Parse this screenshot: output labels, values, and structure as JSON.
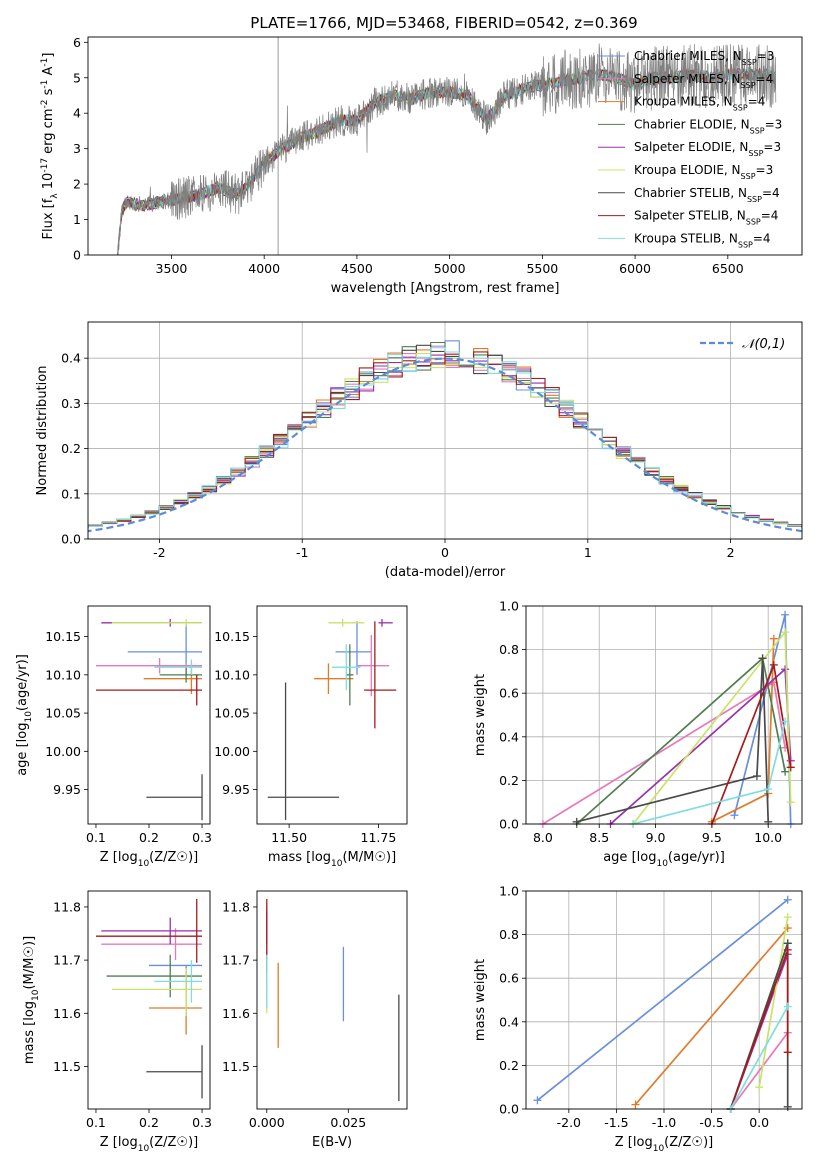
{
  "figure": {
    "title": "PLATE=1766, MJD=53468, FIBERID=0542, z=0.369"
  },
  "models": [
    {
      "name": "Chabrier MILES",
      "nssp": "3",
      "color": "#6a8fdb"
    },
    {
      "name": "Salpeter MILES",
      "nssp": "4",
      "color": "#e67ab8"
    },
    {
      "name": "Kroupa MILES",
      "nssp": "4",
      "color": "#e07b2b"
    },
    {
      "name": "Chabrier ELODIE",
      "nssp": "3",
      "color": "#4f7f4f"
    },
    {
      "name": "Salpeter ELODIE",
      "nssp": "3",
      "color": "#9b2fae"
    },
    {
      "name": "Kroupa ELODIE",
      "nssp": "3",
      "color": "#c9e36a"
    },
    {
      "name": "Chabrier STELIB",
      "nssp": "4",
      "color": "#4a4a4a"
    },
    {
      "name": "Salpeter STELIB",
      "nssp": "4",
      "color": "#a51c1c"
    },
    {
      "name": "Kroupa STELIB",
      "nssp": "4",
      "color": "#7fdde0"
    }
  ],
  "chart_data": [
    {
      "id": "spectrum",
      "type": "line",
      "xlabel": "wavelength [Angstrom, rest frame]",
      "ylabel": "Flux [f_λ 10^-17 erg cm^-2 s^-1 A^-1]",
      "xlim": [
        3050,
        6900
      ],
      "ylim": [
        0,
        6.15
      ],
      "xticks": [
        3500,
        4000,
        4500,
        5000,
        5500,
        6000,
        6500
      ],
      "yticks": [
        0,
        1,
        2,
        3,
        4,
        5,
        6
      ],
      "legend_position": "top-right",
      "legend_template": "{name}, N_SSP={nssp}",
      "continuum": [
        [
          3210,
          0
        ],
        [
          3230,
          1.2
        ],
        [
          3260,
          1.5
        ],
        [
          3350,
          1.4
        ],
        [
          3450,
          1.5
        ],
        [
          3550,
          1.6
        ],
        [
          3650,
          1.7
        ],
        [
          3750,
          1.9
        ],
        [
          3850,
          1.7
        ],
        [
          3900,
          1.9
        ],
        [
          4000,
          2.6
        ],
        [
          4100,
          3.0
        ],
        [
          4200,
          3.3
        ],
        [
          4300,
          3.5
        ],
        [
          4400,
          3.8
        ],
        [
          4500,
          3.8
        ],
        [
          4600,
          4.3
        ],
        [
          4700,
          4.5
        ],
        [
          4800,
          4.4
        ],
        [
          4900,
          4.6
        ],
        [
          5000,
          4.6
        ],
        [
          5100,
          4.5
        ],
        [
          5200,
          3.8
        ],
        [
          5300,
          4.5
        ],
        [
          5400,
          4.7
        ],
        [
          5500,
          4.8
        ],
        [
          5600,
          4.9
        ],
        [
          5700,
          5.0
        ],
        [
          5800,
          5.1
        ],
        [
          5900,
          5.0
        ],
        [
          6000,
          4.8
        ],
        [
          6100,
          5.0
        ],
        [
          6200,
          5.0
        ],
        [
          6300,
          5.1
        ],
        [
          6400,
          5.0
        ],
        [
          6500,
          5.1
        ],
        [
          6600,
          5.1
        ],
        [
          6700,
          5.1
        ],
        [
          6760,
          5.0
        ]
      ]
    },
    {
      "id": "residuals",
      "type": "line",
      "xlabel": "(data-model)/error",
      "ylabel": "Normed distribution",
      "xlim": [
        -2.5,
        2.5
      ],
      "ylim": [
        0,
        0.48
      ],
      "xticks": [
        -2,
        -1,
        0,
        1,
        2
      ],
      "yticks": [
        0.0,
        0.1,
        0.2,
        0.3,
        0.4
      ],
      "grid": true,
      "legend_position": "top-right",
      "reference_curve": {
        "label": "𝒩(0,1)",
        "mean": 0,
        "sigma": 1,
        "style": "dashed"
      },
      "bin_width": 0.1
    },
    {
      "id": "age-vs-z",
      "type": "scatter",
      "xlabel": "Z [log10(Z/Z☉)]",
      "ylabel": "age  [log10(age/yr)]",
      "xlim": [
        0.085,
        0.315
      ],
      "ylim": [
        9.905,
        10.19
      ],
      "xticks": [
        0.1,
        0.2,
        0.3
      ],
      "yticks": [
        9.95,
        10.0,
        10.05,
        10.1,
        10.15
      ],
      "points": [
        {
          "model": 0,
          "x": 0.27,
          "y": 10.13,
          "xerr": [
            0.11,
            0.03
          ],
          "yerr": [
            0.03,
            0.04
          ]
        },
        {
          "model": 1,
          "x": 0.22,
          "y": 10.112,
          "xerr": [
            0.12,
            0.08
          ],
          "yerr": [
            0.01,
            0.01
          ]
        },
        {
          "model": 2,
          "x": 0.28,
          "y": 10.095,
          "xerr": [
            0.09,
            0.02
          ],
          "yerr": [
            0.02,
            0.02
          ]
        },
        {
          "model": 3,
          "x": 0.27,
          "y": 10.1,
          "xerr": [
            0.05,
            0.03
          ],
          "yerr": [
            0.01,
            0.01
          ]
        },
        {
          "model": 4,
          "x": 0.24,
          "y": 10.168,
          "xerr": [
            0.13,
            0.06
          ],
          "yerr": [
            0.005,
            0.005
          ]
        },
        {
          "model": 5,
          "x": 0.27,
          "y": 10.168,
          "xerr": [
            0.14,
            0.03
          ],
          "yerr": [
            0.005,
            0.005
          ]
        },
        {
          "model": 6,
          "x": 0.3,
          "y": 9.94,
          "xerr": [
            0.105,
            0.0
          ],
          "yerr": [
            0.03,
            0.03
          ]
        },
        {
          "model": 7,
          "x": 0.29,
          "y": 10.08,
          "xerr": [
            0.19,
            0.01
          ],
          "yerr": [
            0.02,
            0.02
          ]
        },
        {
          "model": 8,
          "x": 0.28,
          "y": 10.11,
          "xerr": [
            0.07,
            0.02
          ],
          "yerr": [
            0.01,
            0.01
          ]
        }
      ]
    },
    {
      "id": "age-vs-mass",
      "type": "scatter",
      "xlabel": "mass [log10(M/M☉)]",
      "ylabel": "",
      "xlim": [
        11.41,
        11.83
      ],
      "ylim": [
        9.905,
        10.19
      ],
      "xticks": [
        11.5,
        11.75
      ],
      "yticks": [
        9.95,
        10.0,
        10.05,
        10.1,
        10.15
      ],
      "points": [
        {
          "model": 0,
          "x": 11.69,
          "y": 10.13,
          "xerr": [
            0.06,
            0.04
          ],
          "yerr": [
            0.03,
            0.04
          ]
        },
        {
          "model": 1,
          "x": 11.73,
          "y": 10.112,
          "xerr": [
            0.04,
            0.05
          ],
          "yerr": [
            0.04,
            0.04
          ]
        },
        {
          "model": 2,
          "x": 11.61,
          "y": 10.095,
          "xerr": [
            0.04,
            0.07
          ],
          "yerr": [
            0.02,
            0.02
          ]
        },
        {
          "model": 3,
          "x": 11.67,
          "y": 10.1,
          "xerr": [
            0.01,
            0.01
          ],
          "yerr": [
            0.04,
            0.04
          ]
        },
        {
          "model": 4,
          "x": 11.76,
          "y": 10.168,
          "xerr": [
            0.01,
            0.03
          ],
          "yerr": [
            0.005,
            0.005
          ]
        },
        {
          "model": 5,
          "x": 11.65,
          "y": 10.168,
          "xerr": [
            0.04,
            0.06
          ],
          "yerr": [
            0.005,
            0.005
          ]
        },
        {
          "model": 6,
          "x": 11.49,
          "y": 9.94,
          "xerr": [
            0.05,
            0.15
          ],
          "yerr": [
            0.03,
            0.15
          ]
        },
        {
          "model": 7,
          "x": 11.74,
          "y": 10.08,
          "xerr": [
            0.03,
            0.06
          ],
          "yerr": [
            0.05,
            0.09
          ]
        },
        {
          "model": 8,
          "x": 11.66,
          "y": 10.11,
          "xerr": [
            0.04,
            0.04
          ],
          "yerr": [
            0.03,
            0.03
          ]
        }
      ]
    },
    {
      "id": "weight-vs-age",
      "type": "line",
      "xlabel": "age  [log10(age/yr)]",
      "ylabel": "mass weight",
      "xlim": [
        7.85,
        10.3
      ],
      "ylim": [
        0,
        1.0
      ],
      "xticks": [
        8.0,
        8.5,
        9.0,
        9.5,
        10.0
      ],
      "yticks": [
        0.0,
        0.2,
        0.4,
        0.6,
        0.8,
        1.0
      ],
      "grid": true,
      "series": [
        {
          "model": 0,
          "x": [
            9.7,
            10.15,
            10.2
          ],
          "y": [
            0.04,
            0.96,
            0.0
          ]
        },
        {
          "model": 1,
          "x": [
            8.0,
            10.05,
            10.15
          ],
          "y": [
            0.0,
            0.65,
            0.35
          ]
        },
        {
          "model": 2,
          "x": [
            9.5,
            10.0,
            10.05
          ],
          "y": [
            0.01,
            0.14,
            0.85
          ]
        },
        {
          "model": 3,
          "x": [
            8.3,
            9.95,
            10.15
          ],
          "y": [
            0.0,
            0.76,
            0.24
          ]
        },
        {
          "model": 4,
          "x": [
            8.6,
            10.15,
            10.2
          ],
          "y": [
            0.0,
            0.71,
            0.29
          ]
        },
        {
          "model": 5,
          "x": [
            8.8,
            10.15,
            10.2
          ],
          "y": [
            0.0,
            0.88,
            0.1
          ]
        },
        {
          "model": 6,
          "x": [
            8.3,
            9.9,
            9.95,
            10.0
          ],
          "y": [
            0.01,
            0.22,
            0.76,
            0.01
          ]
        },
        {
          "model": 7,
          "x": [
            9.5,
            10.05,
            10.2
          ],
          "y": [
            0.0,
            0.73,
            0.26
          ]
        },
        {
          "model": 8,
          "x": [
            8.8,
            10.0,
            10.15
          ],
          "y": [
            0.0,
            0.16,
            0.47
          ]
        }
      ]
    },
    {
      "id": "mass-vs-z",
      "type": "scatter",
      "xlabel": "Z [log10(Z/Z☉)]",
      "ylabel": "mass [log10(M/M☉)]",
      "xlim": [
        0.085,
        0.315
      ],
      "ylim": [
        11.42,
        11.83
      ],
      "xticks": [
        0.1,
        0.2,
        0.3
      ],
      "yticks": [
        11.5,
        11.6,
        11.7,
        11.8
      ],
      "points": [
        {
          "model": 0,
          "x": 0.27,
          "y": 11.69,
          "xerr": [
            0.07,
            0.03
          ],
          "yerr": [
            0.05,
            0.0
          ]
        },
        {
          "model": 1,
          "x": 0.25,
          "y": 11.73,
          "xerr": [
            0.14,
            0.05
          ],
          "yerr": [
            0.03,
            0.03
          ]
        },
        {
          "model": 2,
          "x": 0.27,
          "y": 11.61,
          "xerr": [
            0.07,
            0.03
          ],
          "yerr": [
            0.05,
            0.05
          ]
        },
        {
          "model": 3,
          "x": 0.24,
          "y": 11.67,
          "xerr": [
            0.12,
            0.06
          ],
          "yerr": [
            0.04,
            0.04
          ]
        },
        {
          "model": 4,
          "x": 0.24,
          "y": 11.755,
          "xerr": [
            0.13,
            0.06
          ],
          "yerr": [
            0.025,
            0.025
          ]
        },
        {
          "model": 5,
          "x": 0.27,
          "y": 11.645,
          "xerr": [
            0.14,
            0.03
          ],
          "yerr": [
            0.05,
            0.04
          ]
        },
        {
          "model": 6,
          "x": 0.3,
          "y": 11.49,
          "xerr": [
            0.105,
            0.0
          ],
          "yerr": [
            0.05,
            0.05
          ]
        },
        {
          "model": 7,
          "x": 0.29,
          "y": 11.745,
          "xerr": [
            0.19,
            0.01
          ],
          "yerr": [
            0.05,
            0.07
          ]
        },
        {
          "model": 8,
          "x": 0.28,
          "y": 11.66,
          "xerr": [
            0.07,
            0.02
          ],
          "yerr": [
            0.04,
            0.04
          ]
        }
      ]
    },
    {
      "id": "mass-vs-ebv",
      "type": "scatter",
      "xlabel": "E(B-V)",
      "ylabel": "",
      "xlim": [
        -0.003,
        0.043
      ],
      "ylim": [
        11.42,
        11.83
      ],
      "xticks": [
        0.0,
        0.025
      ],
      "yticks": [
        11.5,
        11.6,
        11.7,
        11.8
      ],
      "points": [
        {
          "model": 0,
          "x": 0.0235,
          "y": 11.655,
          "yerr": [
            0.07,
            0.07
          ]
        },
        {
          "model": 1,
          "x": 0.0,
          "y": 11.73,
          "yerr": [
            0.07,
            0.07
          ]
        },
        {
          "model": 2,
          "x": 0.0035,
          "y": 11.615,
          "yerr": [
            0.08,
            0.08
          ]
        },
        {
          "model": 3,
          "x": 0.0,
          "y": 11.67,
          "yerr": [
            0.04,
            0.04
          ]
        },
        {
          "model": 4,
          "x": 0.0,
          "y": 11.76,
          "yerr": [
            0.03,
            0.03
          ]
        },
        {
          "model": 5,
          "x": 0.0,
          "y": 11.64,
          "yerr": [
            0.04,
            0.04
          ]
        },
        {
          "model": 6,
          "x": 0.0405,
          "y": 11.535,
          "yerr": [
            0.1,
            0.1
          ]
        },
        {
          "model": 7,
          "x": 0.0,
          "y": 11.76,
          "yerr": [
            0.055,
            0.055
          ]
        },
        {
          "model": 8,
          "x": 0.0,
          "y": 11.66,
          "yerr": [
            0.05,
            0.05
          ]
        }
      ]
    },
    {
      "id": "weight-vs-z",
      "type": "line",
      "xlabel": "Z [log10(Z/Z☉)]",
      "ylabel": "mass weight",
      "xlim": [
        -2.45,
        0.45
      ],
      "ylim": [
        0,
        1.0
      ],
      "xticks": [
        -2.0,
        -1.5,
        -1.0,
        -0.5,
        0.0
      ],
      "yticks": [
        0.0,
        0.2,
        0.4,
        0.6,
        0.8,
        1.0
      ],
      "grid": true,
      "series": [
        {
          "model": 0,
          "x": [
            -2.33,
            0.3
          ],
          "y": [
            0.04,
            0.96
          ]
        },
        {
          "model": 1,
          "x": [
            -0.3,
            0.3
          ],
          "y": [
            0.0,
            0.35
          ]
        },
        {
          "model": 2,
          "x": [
            -1.3,
            0.3
          ],
          "y": [
            0.02,
            0.83
          ]
        },
        {
          "model": 3,
          "x": [
            -0.3,
            0.3
          ],
          "y": [
            0.0,
            0.76
          ]
        },
        {
          "model": 4,
          "x": [
            -0.3,
            0.3
          ],
          "y": [
            0.0,
            0.71
          ]
        },
        {
          "model": 5,
          "x": [
            0.0,
            0.3
          ],
          "y": [
            0.1,
            0.88
          ]
        },
        {
          "model": 6,
          "x": [
            -0.3,
            0.3,
            0.3
          ],
          "y": [
            0.0,
            0.76,
            0.01
          ]
        },
        {
          "model": 7,
          "x": [
            -0.3,
            0.3,
            0.3
          ],
          "y": [
            0.0,
            0.73,
            0.26
          ]
        },
        {
          "model": 8,
          "x": [
            -0.3,
            0.3
          ],
          "y": [
            0.0,
            0.47
          ]
        }
      ]
    }
  ]
}
